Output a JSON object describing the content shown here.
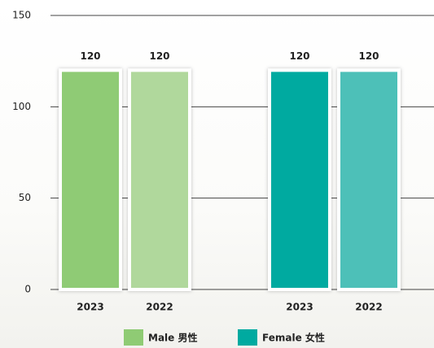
{
  "chart_data": {
    "type": "bar",
    "groups": [
      {
        "name": "Male 男性",
        "color": "#8fcb74",
        "bars": [
          {
            "category": "2023",
            "value": 120,
            "color": "#8fcb74"
          },
          {
            "category": "2022",
            "value": 120,
            "color": "#b0d89c"
          }
        ]
      },
      {
        "name": "Female 女性",
        "color": "#00aaa0",
        "bars": [
          {
            "category": "2023",
            "value": 120,
            "color": "#00aaa0"
          },
          {
            "category": "2022",
            "value": 120,
            "color": "#4dc0b8"
          }
        ]
      }
    ],
    "ylim": [
      0,
      150
    ],
    "yticks": [
      0,
      50,
      100,
      150
    ],
    "grid": true,
    "legend": "bottom"
  }
}
